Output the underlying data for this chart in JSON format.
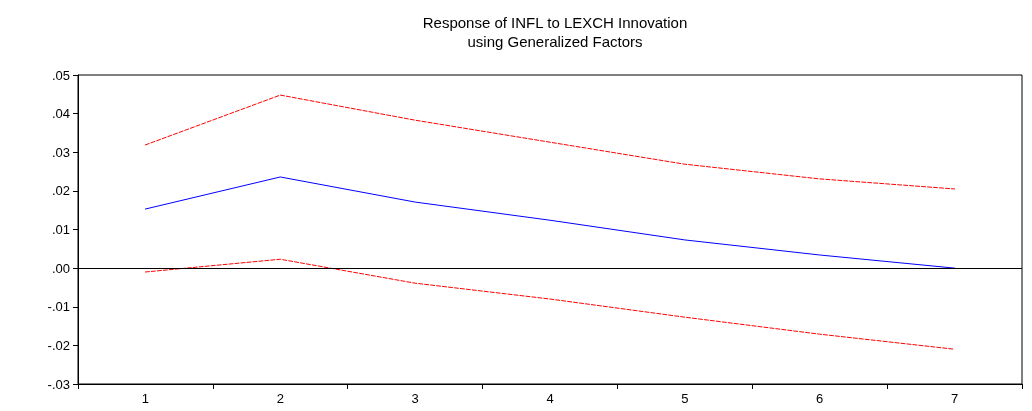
{
  "chart_data": {
    "type": "line",
    "title": "Response of INFL to LEXCH Innovation\nusing Generalized Factors",
    "categories": [
      "1",
      "2",
      "3",
      "4",
      "5",
      "6",
      "7"
    ],
    "series": [
      {
        "color": "#0000ff",
        "line_style": "solid",
        "values": [
          0.0153,
          0.0236,
          0.0171,
          0.0124,
          0.0073,
          0.0034,
          0.0
        ]
      },
      {
        "color": "#ff0000",
        "line_style": "dashed",
        "values": [
          0.0319,
          0.0448,
          0.0383,
          0.0326,
          0.0269,
          0.0231,
          0.0205
        ]
      },
      {
        "color": "#ff0000",
        "line_style": "dashed",
        "values": [
          -0.001,
          0.0023,
          -0.0039,
          -0.008,
          -0.0127,
          -0.0171,
          -0.021
        ]
      }
    ],
    "ylim": [
      -0.03,
      0.05
    ],
    "yticks": [
      {
        "value": -0.03,
        "label": "-.03"
      },
      {
        "value": -0.02,
        "label": "-.02"
      },
      {
        "value": -0.01,
        "label": "-.01"
      },
      {
        "value": 0,
        "label": ".00"
      },
      {
        "value": 0.01,
        "label": ".01"
      },
      {
        "value": 0.02,
        "label": ".02"
      },
      {
        "value": 0.03,
        "label": ".03"
      },
      {
        "value": 0.04,
        "label": ".04"
      },
      {
        "value": 0.05,
        "label": ".05"
      }
    ],
    "ref_lines": [
      {
        "axis": "y",
        "value": 0,
        "color": "#000000"
      }
    ],
    "grid": false,
    "marker": "none"
  }
}
